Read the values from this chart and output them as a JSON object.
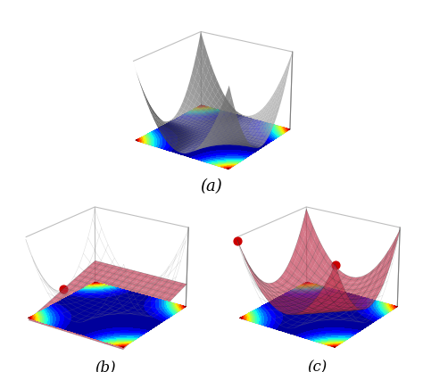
{
  "title_a": "(a)",
  "title_b": "(b)",
  "title_c": "(c)",
  "surface_color_a": "#aaaaaa",
  "surface_alpha_a": 0.75,
  "surface_color_bc": "#c0304a",
  "surface_alpha_bc": 0.65,
  "wire_color_bc": "#222222",
  "wire_alpha_bc": 0.35,
  "wire_lw": 0.4,
  "wire_stride": 2,
  "dot_color": "#cc0000",
  "dot_size": 40,
  "n_grid": 28,
  "x_range": [
    -2,
    2
  ],
  "y_range": [
    -2,
    2
  ],
  "elev_a": 22,
  "azim_a": -55,
  "elev_bc": 22,
  "azim_bc": -55,
  "cmap": "jet",
  "fig_width": 4.74,
  "fig_height": 4.17,
  "dpi": 100,
  "label_fontsize": 13,
  "pane_color": [
    0.95,
    0.95,
    0.95,
    0.0
  ],
  "box_edge_color": "gray"
}
